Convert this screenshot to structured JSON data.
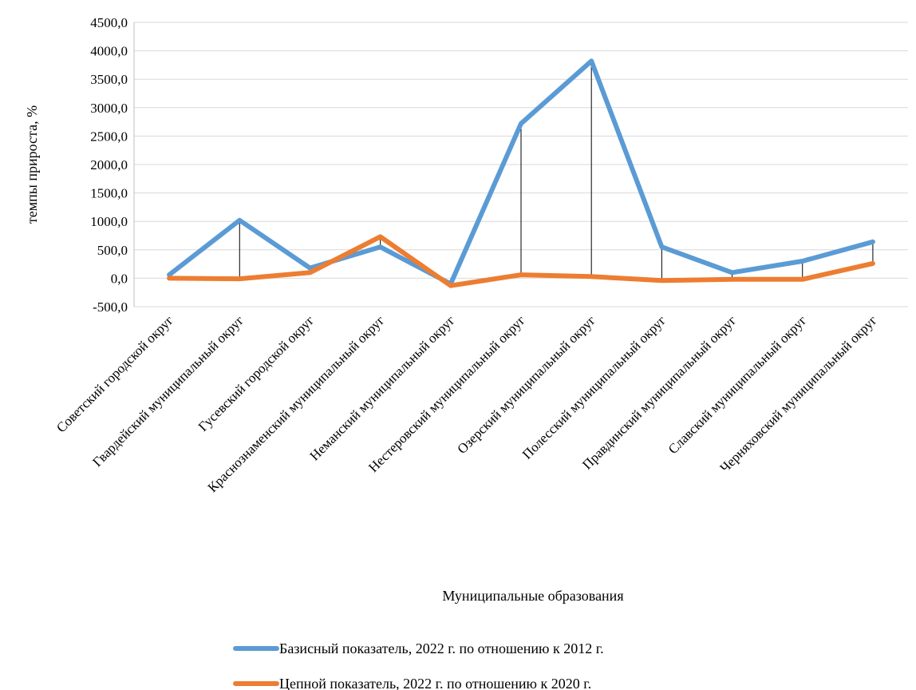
{
  "chart_data": {
    "type": "line",
    "title": "",
    "xlabel": "Муниципальные образования",
    "ylabel": "темпы прироста, %",
    "ylim": [
      -500,
      4500
    ],
    "ytick_step": 500,
    "yticks": [
      "-500,0",
      "0,0",
      "500,0",
      "1000,0",
      "1500,0",
      "2000,0",
      "2500,0",
      "3000,0",
      "3500,0",
      "4000,0",
      "4500,0"
    ],
    "grid": true,
    "legend_position": "bottom",
    "drop_lines": true,
    "categories": [
      "Советский городской округ",
      "Гвардейский муниципальный округ",
      "Гусевский городской округ",
      "Краснознаменский муниципальный округ",
      "Неманский муниципальный округ",
      "Нестеровский муниципальный округ",
      "Озерский муниципальный округ",
      "Полесский муниципальный округ",
      "Правдинский муниципальный округ",
      "Славский муниципальный округ",
      "Черняховский муниципальный округ"
    ],
    "series": [
      {
        "name": "Базисный показатель, 2022 г. по отношению к 2012 г.",
        "color": "#5b9bd5",
        "values": [
          60,
          1020,
          180,
          550,
          -100,
          2720,
          3820,
          550,
          100,
          300,
          640
        ]
      },
      {
        "name": "Цепной показатель, 2022 г. по отношению к 2020 г.",
        "color": "#ed7d31",
        "values": [
          0,
          -10,
          100,
          730,
          -130,
          60,
          30,
          -40,
          -20,
          -20,
          260
        ]
      }
    ]
  }
}
